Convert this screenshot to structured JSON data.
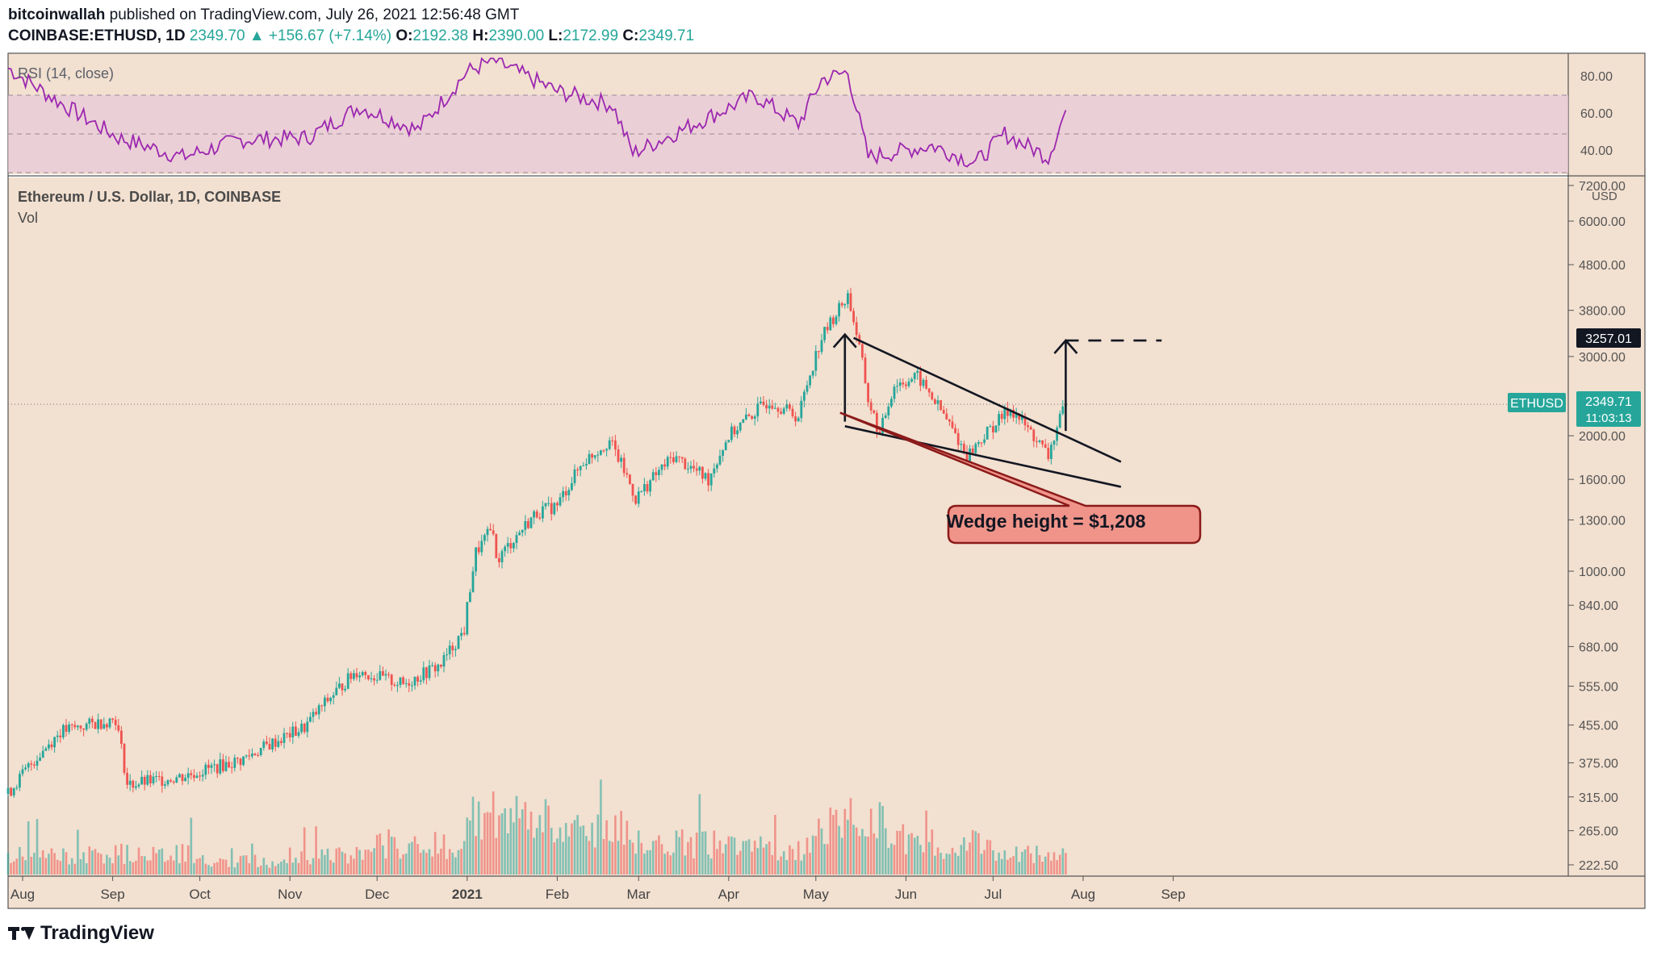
{
  "header": {
    "author": "bitcoinwallah",
    "published": "published on TradingView.com, July 26, 2021 12:56:48 GMT",
    "symbol": "COINBASE:ETHUSD, 1D",
    "last": "2349.70",
    "change": "▲ +156.67 (+7.14%)",
    "o_label": "O:",
    "o": "2192.38",
    "h_label": "H:",
    "h": "2390.00",
    "l_label": "L:",
    "l": "2172.99",
    "c_label": "C:",
    "c": "2349.71"
  },
  "rsi_panel": {
    "label": "RSI (14, close)",
    "ticks": [
      "80.00",
      "60.00",
      "40.00"
    ]
  },
  "main_panel": {
    "title": "Ethereum / U.S. Dollar, 1D, COINBASE",
    "vol_label": "Vol",
    "currency": "USD",
    "price_ticks": [
      "7200.00",
      "6000.00",
      "4800.00",
      "3800.00",
      "3000.00",
      "2000.00",
      "1600.00",
      "1300.00",
      "1000.00",
      "840.00",
      "680.00",
      "555.00",
      "455.00",
      "375.00",
      "315.00",
      "265.00",
      "222.50"
    ],
    "target_label": "3257.01",
    "ethusd_tag": "ETHUSD",
    "price_label": "2349.71",
    "countdown": "11:03:13",
    "annotation": "Wedge height = $1,208"
  },
  "time_axis": [
    "Aug",
    "Sep",
    "Oct",
    "Nov",
    "Dec",
    "2021",
    "Feb",
    "Mar",
    "Apr",
    "May",
    "Jun",
    "Jul",
    "Aug",
    "Sep"
  ],
  "footer": {
    "brand": "TradingView"
  },
  "colors": {
    "background": "#f2e0d0",
    "up": "#26a69a",
    "down": "#ef5350",
    "rsi_line": "#9c27b0",
    "rsi_band": "#e8c8d8",
    "annotation_fill": "#f0948a",
    "annotation_border": "#8b1a1a"
  },
  "chart_data": [
    {
      "type": "line",
      "name": "RSI (14, close)",
      "ylim": [
        30,
        90
      ],
      "bands": [
        30,
        70
      ],
      "x": [
        "2020-07-27",
        "2020-08-15",
        "2020-09-03",
        "2020-09-25",
        "2020-10-15",
        "2020-11-07",
        "2020-11-25",
        "2020-12-15",
        "2021-01-01",
        "2021-01-10",
        "2021-02-01",
        "2021-02-20",
        "2021-02-27",
        "2021-03-20",
        "2021-04-10",
        "2021-04-25",
        "2021-05-03",
        "2021-05-12",
        "2021-05-19",
        "2021-06-10",
        "2021-06-25",
        "2021-07-05",
        "2021-07-20",
        "2021-07-26"
      ],
      "values": [
        84,
        65,
        48,
        38,
        47,
        48,
        64,
        52,
        82,
        88,
        72,
        65,
        40,
        55,
        70,
        55,
        78,
        82,
        38,
        44,
        35,
        50,
        38,
        62
      ]
    },
    {
      "type": "line",
      "name": "ETHUSD",
      "yscale": "log",
      "ylim": [
        210,
        7500
      ],
      "x": [
        "2020-07-27",
        "2020-08-14",
        "2020-09-02",
        "2020-09-06",
        "2020-09-25",
        "2020-10-15",
        "2020-11-06",
        "2020-11-24",
        "2020-12-10",
        "2020-12-23",
        "2020-12-31",
        "2021-01-04",
        "2021-01-10",
        "2021-01-11",
        "2021-01-25",
        "2021-02-01",
        "2021-02-10",
        "2021-02-19",
        "2021-02-28",
        "2021-03-13",
        "2021-03-25",
        "2021-04-01",
        "2021-04-15",
        "2021-04-25",
        "2021-05-03",
        "2021-05-12",
        "2021-05-19",
        "2021-05-23",
        "2021-05-28",
        "2021-06-05",
        "2021-06-22",
        "2021-07-07",
        "2021-07-20",
        "2021-07-26"
      ],
      "values": [
        320,
        440,
        470,
        335,
        350,
        380,
        450,
        600,
        560,
        620,
        740,
        1100,
        1250,
        1050,
        1350,
        1400,
        1750,
        1950,
        1450,
        1800,
        1600,
        2000,
        2400,
        2200,
        3300,
        4100,
        2400,
        2000,
        2600,
        2700,
        1800,
        2300,
        1800,
        2349.71
      ]
    },
    {
      "type": "bar",
      "name": "Vol",
      "x": [
        "2020-08",
        "2020-09",
        "2020-10",
        "2020-11",
        "2020-12",
        "2021-01",
        "2021-02",
        "2021-03",
        "2021-04",
        "2021-05",
        "2021-06",
        "2021-07"
      ],
      "values": [
        1.0,
        1.1,
        0.7,
        1.0,
        1.6,
        3.0,
        2.2,
        1.6,
        1.4,
        2.7,
        1.6,
        1.1
      ]
    }
  ],
  "wedge": {
    "upper": [
      [
        "2021-05-14",
        3300
      ],
      [
        "2021-08-14",
        1750
      ]
    ],
    "lower": [
      [
        "2021-05-11",
        2100
      ],
      [
        "2021-08-14",
        1540
      ]
    ],
    "height_arrow": [
      [
        "2021-05-11",
        2150
      ],
      [
        "2021-05-11",
        3358
      ]
    ],
    "target_arrow": [
      [
        "2021-07-26",
        2050
      ],
      [
        "2021-07-26",
        3257.01
      ]
    ],
    "target_line": {
      "start": "2021-07-26",
      "end": "2021-08-28",
      "value": 3257.01
    }
  }
}
